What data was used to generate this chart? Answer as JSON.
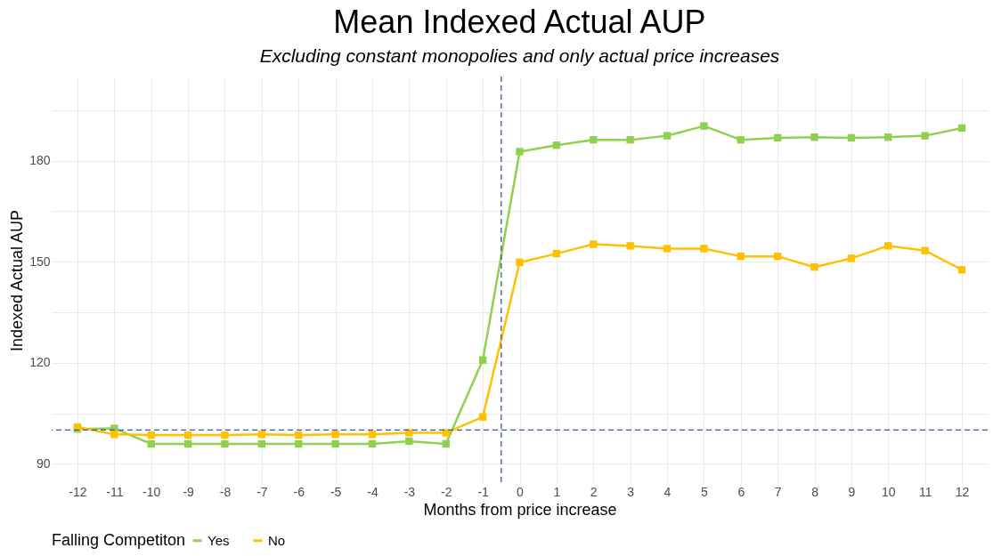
{
  "chart_data": {
    "type": "line",
    "title": "Mean Indexed Actual AUP",
    "subtitle": "Excluding constant monopolies and only actual price increases",
    "xlabel": "Months from price increase",
    "ylabel": "Indexed Actual AUP",
    "legend_title": "Falling Competiton",
    "x": [
      -12,
      -11,
      -10,
      -9,
      -8,
      -7,
      -6,
      -5,
      -4,
      -3,
      -2,
      -1,
      0,
      1,
      2,
      3,
      4,
      5,
      6,
      7,
      8,
      9,
      10,
      11,
      12
    ],
    "series": [
      {
        "name": "Yes",
        "color": "#8fd14f",
        "values": [
          100.3,
          100.5,
          95.9,
          95.9,
          95.9,
          95.9,
          95.9,
          95.9,
          95.9,
          96.7,
          95.9,
          120.8,
          182.7,
          184.6,
          186.2,
          186.2,
          187.4,
          190.3,
          186.2,
          186.8,
          187,
          186.8,
          187,
          187.4,
          189.7
        ]
      },
      {
        "name": "No",
        "color": "#ffc000",
        "values": [
          100.9,
          98.7,
          98.5,
          98.5,
          98.5,
          98.7,
          98.5,
          98.7,
          98.7,
          99.2,
          99.2,
          103.9,
          149.8,
          152.4,
          155.2,
          154.7,
          153.9,
          153.9,
          151.6,
          151.6,
          148.4,
          151,
          154.7,
          153.3,
          147.6
        ]
      }
    ],
    "xlim": [
      -12.7,
      12.7
    ],
    "xticks": [
      -12,
      -11,
      -10,
      -9,
      -8,
      -7,
      -6,
      -5,
      -4,
      -3,
      -2,
      -1,
      0,
      1,
      2,
      3,
      4,
      5,
      6,
      7,
      8,
      9,
      10,
      11,
      12
    ],
    "ylim": [
      84,
      205
    ],
    "yticks": [
      90,
      {
        "value": 105,
        "label": null
      },
      120,
      {
        "value": 135,
        "label": null
      },
      150,
      {
        "value": 165,
        "label": null
      },
      180,
      {
        "value": 195,
        "label": null
      }
    ],
    "ref_lines": [
      {
        "axis": "y",
        "value": 100,
        "color": "#3b5998",
        "line_style": "dashed"
      },
      {
        "axis": "x",
        "value": -0.5,
        "color": "#3b5998",
        "line_style": "dashed"
      }
    ],
    "grid": true,
    "legend": "bottom",
    "marker": "square",
    "line_style": "solid"
  }
}
